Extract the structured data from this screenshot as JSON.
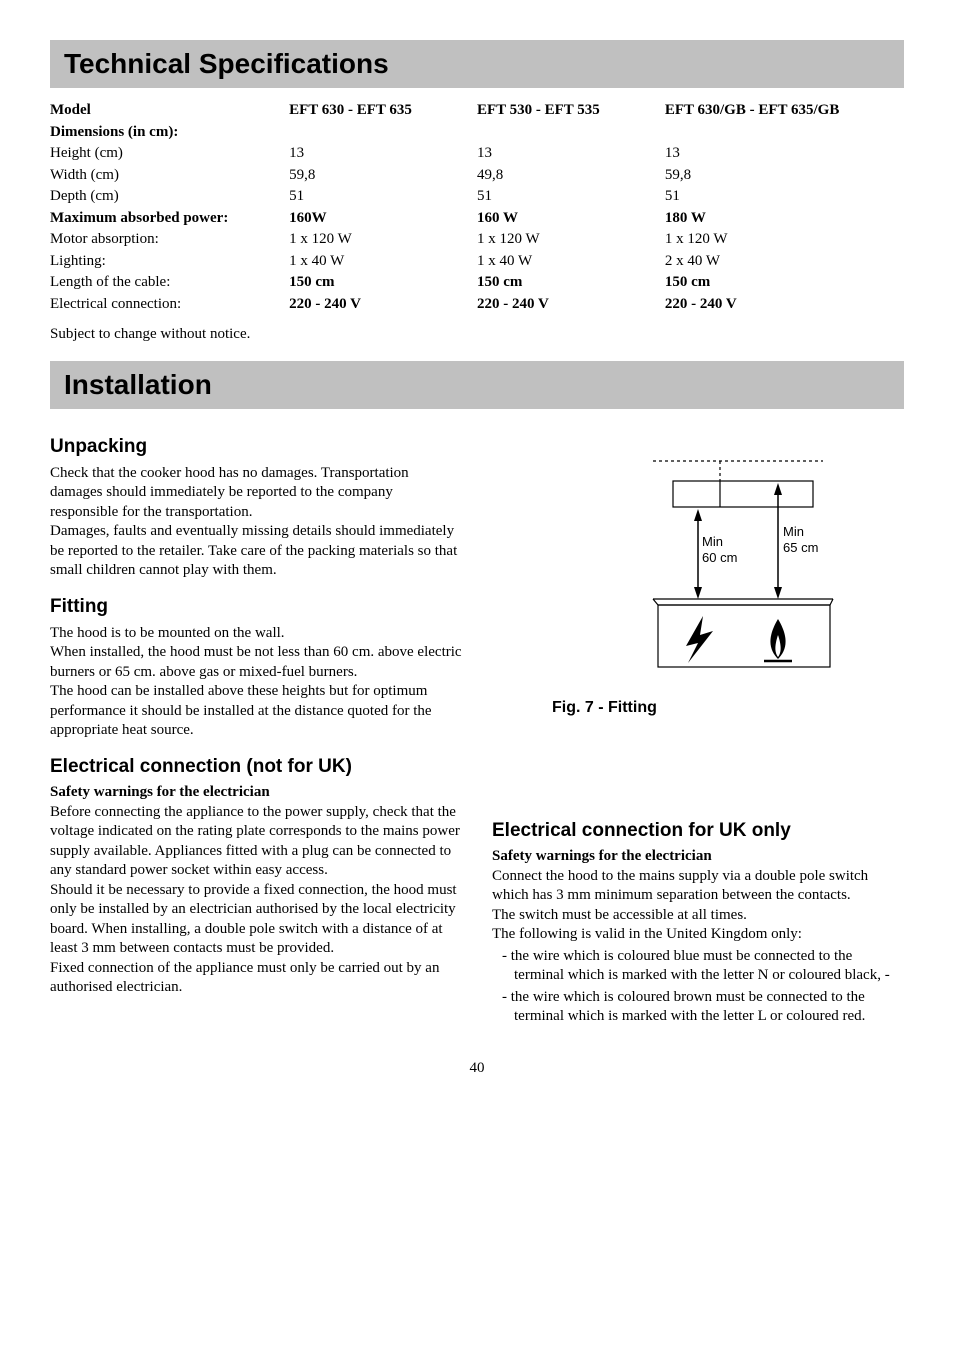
{
  "banner1": "Technical Specifications",
  "spec_table": {
    "rows": [
      {
        "label": "Model",
        "c1": "EFT 630 - EFT 635",
        "c2": "EFT 530 - EFT 535",
        "c3": "EFT 630/GB - EFT 635/GB",
        "bold_label": true,
        "bold_vals": true
      },
      {
        "label": "Dimensions (in cm):",
        "c1": "",
        "c2": "",
        "c3": "",
        "bold_label": true,
        "bold_vals": false
      },
      {
        "label": "Height (cm)",
        "c1": "13",
        "c2": "13",
        "c3": "13",
        "bold_label": false,
        "bold_vals": false
      },
      {
        "label": "Width (cm)",
        "c1": "59,8",
        "c2": "49,8",
        "c3": "59,8",
        "bold_label": false,
        "bold_vals": false
      },
      {
        "label": "Depth (cm)",
        "c1": "51",
        "c2": "51",
        "c3": "51",
        "bold_label": false,
        "bold_vals": false
      },
      {
        "label": "Maximum absorbed power:",
        "c1": "160W",
        "c2": "160 W",
        "c3": "180 W",
        "bold_label": true,
        "bold_vals": true
      },
      {
        "label": "Motor absorption:",
        "c1": "1 x 120 W",
        "c2": "1 x 120 W",
        "c3": "1 x 120 W",
        "bold_label": false,
        "bold_vals": false
      },
      {
        "label": "Lighting:",
        "c1": "1 x 40 W",
        "c2": "1 x 40 W",
        "c3": "2 x 40 W",
        "bold_label": false,
        "bold_vals": false
      },
      {
        "label": "Length of the cable:",
        "c1": "150 cm",
        "c2": "150 cm",
        "c3": "150 cm",
        "bold_label": false,
        "bold_vals": true
      },
      {
        "label": "Electrical connection:",
        "c1": "220 - 240 V",
        "c2": "220 - 240 V",
        "c3": "220 - 240 V",
        "bold_label": false,
        "bold_vals": true
      }
    ]
  },
  "subject_line": "Subject to change without notice.",
  "banner2": "Installation",
  "unpacking": {
    "heading": "Unpacking",
    "text": "Check that the cooker hood has no damages. Transportation damages should immediately be reported to the company responsible for the transportation.\nDamages, faults and eventually missing details should immediately be reported to the retailer. Take care of the packing materials so that small children cannot play with them."
  },
  "fitting": {
    "heading": "Fitting",
    "text": "The hood is to be mounted on the wall.\nWhen installed, the hood must be not less than 60 cm. above electric burners or 65 cm. above gas or mixed-fuel burners.\nThe hood can be installed above these heights but for optimum performance it should be installed at the distance quoted for the appropriate heat source."
  },
  "elec_not_uk": {
    "heading": "Electrical connection (not for UK)",
    "subheading": "Safety warnings for the electrician",
    "text": "Before connecting the appliance to the power supply, check that the voltage indicated on the rating plate corresponds to the mains power supply available.  Appliances fitted with a plug can be connected to any standard power socket within easy access.\nShould it be necessary to provide a fixed connection, the hood must only be installed by an electrician authorised by the local electricity board. When installing, a double pole switch with a distance of at least 3 mm between contacts must be provided.\nFixed connection of the appliance must only be carried out by an authorised electrician."
  },
  "elec_uk": {
    "heading": "Electrical connection for UK only",
    "subheading": "Safety warnings for the electrician",
    "text": "Connect the hood to the mains supply via a double pole switch which has 3 mm minimum separation between the contacts.\nThe switch must be accessible at all times.\nThe following is valid in the United Kingdom only:",
    "bullets": [
      "the wire which is coloured blue must be connected to the terminal which is marked with the letter N or coloured black, -",
      "the wire which is coloured brown must be connected to the terminal which is marked with the letter L or coloured red."
    ]
  },
  "figure": {
    "caption": "Fig. 7 - Fitting",
    "label_left_1": "Min",
    "label_left_2": "60 cm",
    "label_right_1": "Min",
    "label_right_2": "65 cm"
  },
  "page_number": "40"
}
